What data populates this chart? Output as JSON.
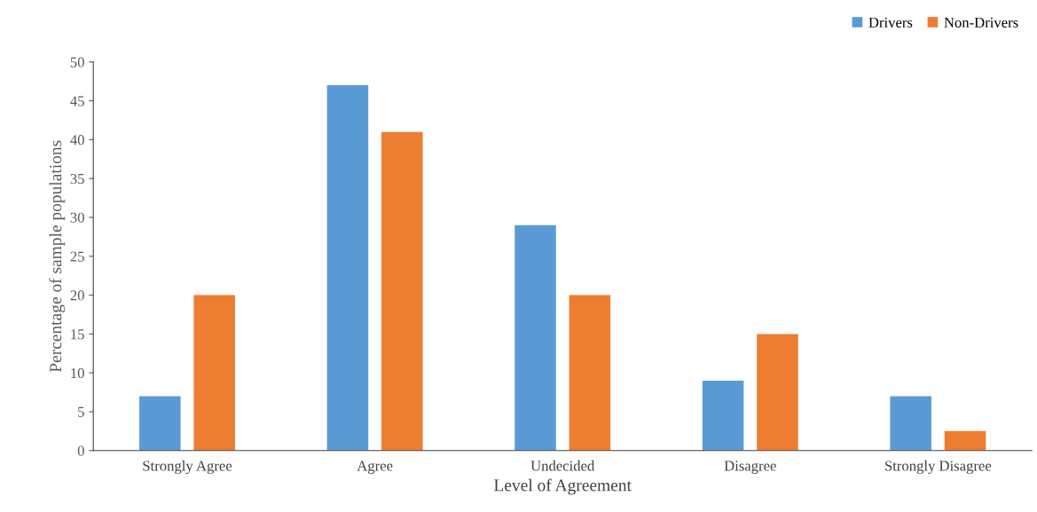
{
  "chart_data": {
    "type": "bar",
    "xlabel": "Level of Agreement",
    "ylabel": "Percentage of sample populations",
    "categories": [
      "Strongly Agree",
      "Agree",
      "Undecided",
      "Disagree",
      "Strongly Disagree"
    ],
    "series": [
      {
        "name": "Drivers",
        "color": "#5b9bd5",
        "values": [
          7,
          47,
          29,
          9,
          7
        ]
      },
      {
        "name": "Non-Drivers",
        "color": "#ed7d31",
        "values": [
          20,
          41,
          20,
          15,
          2.5
        ]
      }
    ],
    "ylim": [
      0,
      50
    ],
    "yticks": [
      0,
      5,
      10,
      15,
      20,
      25,
      30,
      35,
      40,
      45,
      50
    ],
    "grid": false,
    "legend": "top right"
  }
}
